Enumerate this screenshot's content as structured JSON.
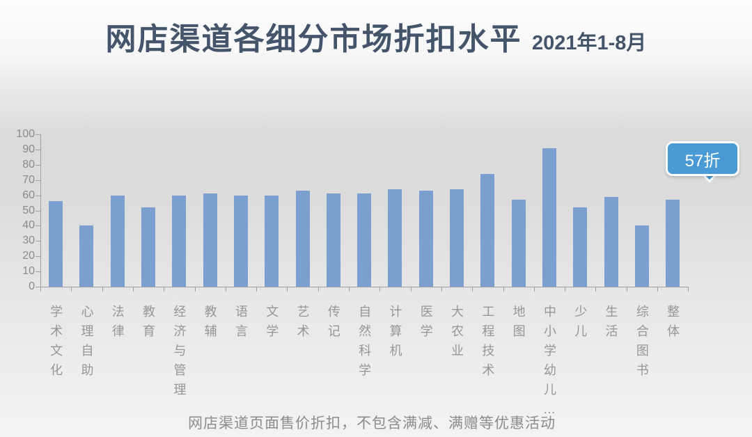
{
  "header": {
    "title": "网店渠道各细分市场折扣水平",
    "period": "2021年1-8月"
  },
  "chart_data": {
    "type": "bar",
    "title": "网店渠道各细分市场折扣水平 2021年1-8月",
    "categories": [
      "学术文化",
      "心理自助",
      "法律",
      "教育",
      "经济与管理",
      "教辅",
      "语言",
      "文学",
      "艺术",
      "传记",
      "自然科学",
      "计算机",
      "医学",
      "大农业",
      "工程技术",
      "地图",
      "中小学幼儿…",
      "少儿",
      "生活",
      "综合图书",
      "整体"
    ],
    "values": [
      56,
      40,
      60,
      52,
      60,
      61,
      60,
      60,
      63,
      61,
      61,
      64,
      63,
      64,
      74,
      57,
      91,
      52,
      59,
      40,
      57
    ],
    "xlabel": "",
    "ylabel": "",
    "ylim": [
      0,
      100
    ],
    "ytick_step": 10,
    "grid": false,
    "legend": "none",
    "bar_orientation": "vertical",
    "callout": {
      "text": "57折",
      "target_category": "整体"
    },
    "footnote": "网店渠道页面售价折扣，不包含满减、满赠等优惠活动",
    "colors": {
      "title": "#44546A",
      "bar": "#7BA0D0",
      "callout_fill": "#4A9AD6",
      "callout_text": "#FFFFFF",
      "axis": "#9E9E9E",
      "tick_label": "#8A8A8A",
      "category_label": "#969696",
      "footnote": "#8C8C8C"
    }
  }
}
